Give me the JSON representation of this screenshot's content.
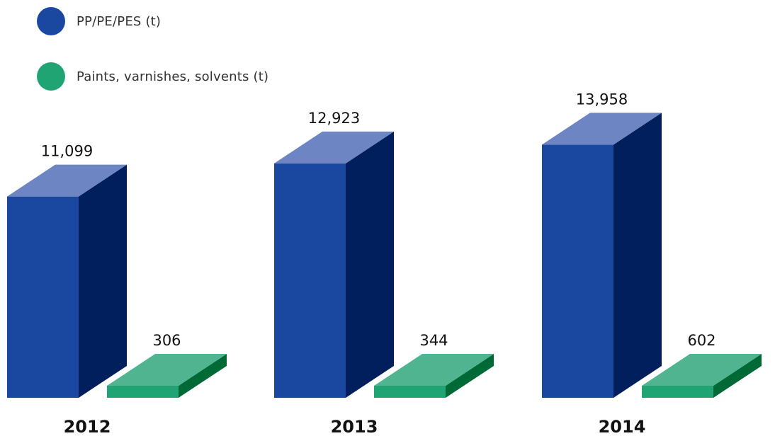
{
  "chart_data": {
    "type": "bar",
    "categories": [
      "2012",
      "2013",
      "2014"
    ],
    "series": [
      {
        "name": "PP/PE/PES (t)",
        "values": [
          11099,
          12923,
          13958
        ],
        "labels": [
          "11,099",
          "12,923",
          "13,958"
        ],
        "color_front": "#1a47a0",
        "color_side": "#001f5c",
        "color_top": "#6e85c4"
      },
      {
        "name": "Paints, varnishes, solvents (t)",
        "values": [
          306,
          344,
          602
        ],
        "labels": [
          "306",
          "344",
          "602"
        ],
        "color_front": "#20a474",
        "color_side": "#006a37",
        "color_top": "#4fb48f"
      }
    ],
    "bar_style": "3d",
    "legend_position": "top-left",
    "grid": false
  }
}
